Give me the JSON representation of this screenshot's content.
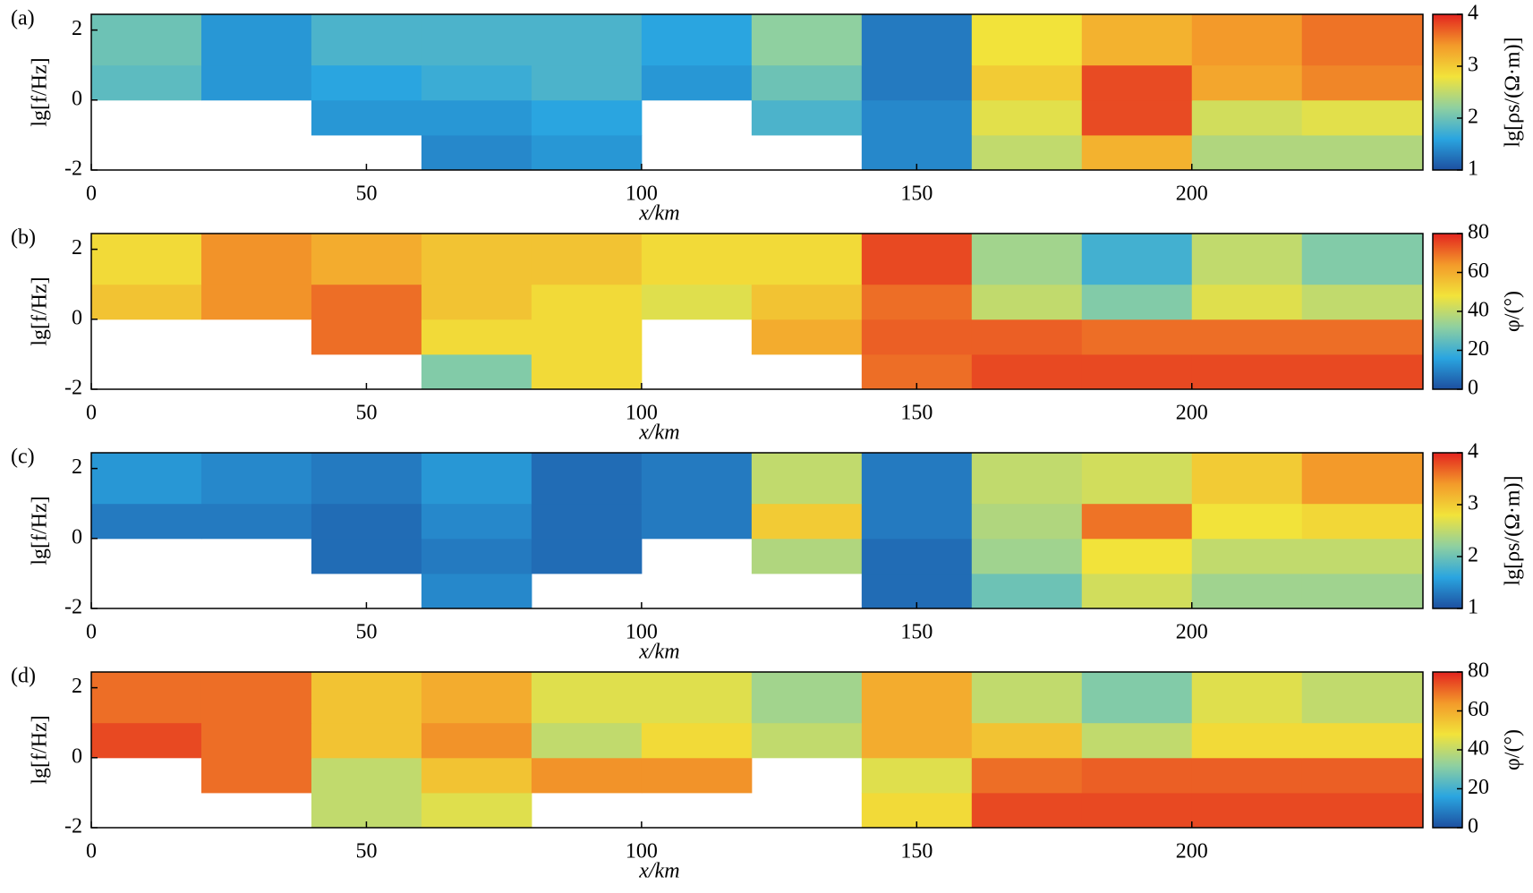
{
  "chart_data": [
    {
      "type": "heatmap",
      "panel_label": "(a)",
      "xlabel": "x/km",
      "ylabel": "lg[f/Hz]",
      "zlabel": "lg[ρs/(Ω·m)]",
      "xbins": [
        0,
        20,
        40,
        60,
        80,
        100,
        120,
        140,
        160,
        180,
        200,
        220,
        242
      ],
      "ybins": [
        -2,
        -1,
        0,
        1,
        2.45
      ],
      "z": [
        [
          null,
          null,
          null,
          1.4,
          1.5,
          null,
          null,
          1.4,
          2.5,
          3.2,
          2.4,
          2.4
        ],
        [
          null,
          null,
          1.5,
          1.5,
          1.6,
          null,
          1.8,
          1.4,
          2.7,
          3.8,
          2.6,
          2.7
        ],
        [
          1.9,
          1.5,
          1.6,
          1.7,
          1.8,
          1.5,
          2.0,
          1.3,
          3.0,
          3.8,
          3.3,
          3.5
        ],
        [
          2.0,
          1.5,
          1.8,
          1.8,
          1.8,
          1.6,
          2.2,
          1.3,
          2.8,
          3.2,
          3.4,
          3.6
        ]
      ],
      "xlim": [
        0,
        242
      ],
      "ylim": [
        -2,
        2.45
      ],
      "xticks": [
        0,
        50,
        100,
        150,
        200
      ],
      "yticks": [
        -2,
        0,
        2
      ],
      "zlim": [
        1,
        4
      ],
      "zticks": [
        1,
        2,
        3,
        4
      ],
      "colormap": [
        "#1d4fa0",
        "#2aa5e0",
        "#8fd0a0",
        "#f2e33a",
        "#f39a2a",
        "#e3241f"
      ]
    },
    {
      "type": "heatmap",
      "panel_label": "(b)",
      "xlabel": "x/km",
      "ylabel": "lg[f/Hz]",
      "zlabel": "φ/(°)",
      "xbins": [
        0,
        20,
        40,
        60,
        80,
        100,
        120,
        140,
        160,
        180,
        200,
        220,
        242
      ],
      "ybins": [
        -2,
        -1,
        0,
        1,
        2.45
      ],
      "z": [
        [
          null,
          null,
          null,
          30,
          50,
          null,
          null,
          70,
          75,
          75,
          75,
          75
        ],
        [
          null,
          null,
          70,
          50,
          50,
          null,
          60,
          72,
          72,
          70,
          70,
          70
        ],
        [
          55,
          65,
          70,
          55,
          50,
          45,
          55,
          70,
          40,
          30,
          45,
          40
        ],
        [
          50,
          65,
          60,
          55,
          55,
          50,
          50,
          75,
          35,
          20,
          40,
          30
        ]
      ],
      "xlim": [
        0,
        242
      ],
      "ylim": [
        -2,
        2.45
      ],
      "xticks": [
        0,
        50,
        100,
        150,
        200
      ],
      "yticks": [
        -2,
        0,
        2
      ],
      "zlim": [
        0,
        80
      ],
      "zticks": [
        0,
        20,
        40,
        60,
        80
      ],
      "colormap": [
        "#1d4fa0",
        "#2aa5e0",
        "#8fd0a0",
        "#f2e33a",
        "#f39a2a",
        "#e3241f"
      ]
    },
    {
      "type": "heatmap",
      "panel_label": "(c)",
      "xlabel": "x/km",
      "ylabel": "lg[f/Hz]",
      "zlabel": "lg[ρs/(Ω·m)]",
      "xbins": [
        0,
        20,
        40,
        60,
        80,
        100,
        120,
        140,
        160,
        180,
        200,
        220,
        242
      ],
      "ybins": [
        -2,
        -1,
        0,
        1,
        2.45
      ],
      "z": [
        [
          null,
          null,
          null,
          1.4,
          null,
          null,
          null,
          1.2,
          2.0,
          2.6,
          2.3,
          2.3
        ],
        [
          null,
          null,
          1.2,
          1.3,
          1.2,
          null,
          2.4,
          1.2,
          2.3,
          2.8,
          2.5,
          2.5
        ],
        [
          1.3,
          1.3,
          1.2,
          1.4,
          1.2,
          1.3,
          3.0,
          1.3,
          2.4,
          3.6,
          2.8,
          2.9
        ],
        [
          1.5,
          1.4,
          1.3,
          1.5,
          1.2,
          1.3,
          2.5,
          1.3,
          2.5,
          2.6,
          3.0,
          3.4
        ]
      ],
      "xlim": [
        0,
        242
      ],
      "ylim": [
        -2,
        2.45
      ],
      "xticks": [
        0,
        50,
        100,
        150,
        200
      ],
      "yticks": [
        -2,
        0,
        2
      ],
      "zlim": [
        1,
        4
      ],
      "zticks": [
        1,
        2,
        3,
        4
      ],
      "colormap": [
        "#1d4fa0",
        "#2aa5e0",
        "#8fd0a0",
        "#f2e33a",
        "#f39a2a",
        "#e3241f"
      ]
    },
    {
      "type": "heatmap",
      "panel_label": "(d)",
      "xlabel": "x/km",
      "ylabel": "lg[f/Hz]",
      "zlabel": "φ/(°)",
      "xbins": [
        0,
        20,
        40,
        60,
        80,
        100,
        120,
        140,
        160,
        180,
        200,
        220,
        242
      ],
      "ybins": [
        -2,
        -1,
        0,
        1,
        2.45
      ],
      "z": [
        [
          null,
          null,
          40,
          45,
          null,
          null,
          null,
          50,
          75,
          75,
          75,
          75
        ],
        [
          null,
          70,
          40,
          55,
          65,
          65,
          null,
          45,
          70,
          72,
          72,
          72
        ],
        [
          75,
          70,
          55,
          65,
          40,
          50,
          40,
          60,
          55,
          40,
          50,
          50
        ],
        [
          70,
          70,
          55,
          60,
          45,
          45,
          35,
          60,
          40,
          30,
          45,
          40
        ]
      ],
      "xlim": [
        0,
        242
      ],
      "ylim": [
        -2,
        2.45
      ],
      "xticks": [
        0,
        50,
        100,
        150,
        200
      ],
      "yticks": [
        -2,
        0,
        2
      ],
      "zlim": [
        0,
        80
      ],
      "zticks": [
        0,
        20,
        40,
        60,
        80
      ],
      "colormap": [
        "#1d4fa0",
        "#2aa5e0",
        "#8fd0a0",
        "#f2e33a",
        "#f39a2a",
        "#e3241f"
      ]
    }
  ]
}
